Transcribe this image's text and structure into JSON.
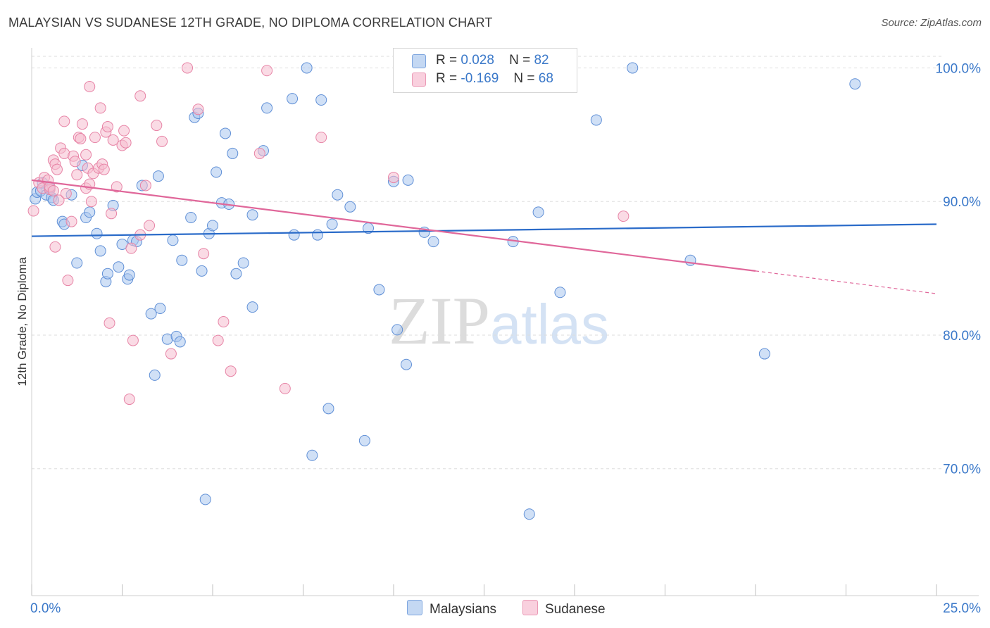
{
  "title": "MALAYSIAN VS SUDANESE 12TH GRADE, NO DIPLOMA CORRELATION CHART",
  "source": "Source: ZipAtlas.com",
  "watermark": {
    "zip": "ZIP",
    "atlas": "atlas"
  },
  "legend": {
    "rows": [
      {
        "r_label": "R =",
        "r_value": "0.028",
        "n_label": "N =",
        "n_value": "82"
      },
      {
        "r_label": "R =",
        "r_value": "-0.169",
        "n_label": "N =",
        "n_value": "68"
      }
    ]
  },
  "colors": {
    "blue_fill": "#a9c6ee",
    "blue_stroke": "#5f8fd6",
    "blue_line": "#2a6bc9",
    "pink_fill": "#f6bdd0",
    "pink_stroke": "#e784a6",
    "pink_line": "#e0679a",
    "tick_label": "#3a78c9",
    "grid": "#dddddd"
  },
  "chart_data": {
    "type": "scatter",
    "title": "MALAYSIAN VS SUDANESE 12TH GRADE, NO DIPLOMA CORRELATION CHART",
    "xlabel": "",
    "ylabel": "12th Grade, No Diploma",
    "xlim": [
      0,
      25
    ],
    "ylim": [
      60.5,
      101.5
    ],
    "x_tick_labels": [
      "0.0%",
      "25.0%"
    ],
    "y_ticks": [
      70,
      80,
      90,
      100
    ],
    "y_tick_labels": [
      "70.0%",
      "80.0%",
      "90.0%",
      "100.0%"
    ],
    "grid": true,
    "legend_position": "bottom",
    "series": [
      {
        "name": "Malaysians",
        "color": "#a9c6ee",
        "points": [
          [
            0.1,
            90.2
          ],
          [
            0.15,
            90.7
          ],
          [
            0.25,
            90.8
          ],
          [
            0.3,
            91.4
          ],
          [
            0.4,
            90.5
          ],
          [
            0.5,
            91.0
          ],
          [
            0.55,
            90.3
          ],
          [
            0.6,
            90.1
          ],
          [
            0.85,
            88.5
          ],
          [
            0.9,
            88.3
          ],
          [
            1.1,
            90.5
          ],
          [
            1.4,
            92.7
          ],
          [
            1.5,
            88.8
          ],
          [
            1.6,
            89.2
          ],
          [
            1.8,
            87.6
          ],
          [
            1.9,
            86.3
          ],
          [
            1.25,
            85.4
          ],
          [
            2.05,
            84.0
          ],
          [
            2.1,
            84.6
          ],
          [
            2.25,
            89.7
          ],
          [
            2.4,
            85.1
          ],
          [
            2.5,
            86.8
          ],
          [
            2.65,
            84.2
          ],
          [
            2.7,
            84.5
          ],
          [
            2.8,
            87.1
          ],
          [
            2.9,
            87.0
          ],
          [
            3.05,
            91.2
          ],
          [
            3.3,
            81.6
          ],
          [
            3.4,
            77.0
          ],
          [
            3.5,
            91.9
          ],
          [
            3.55,
            82.0
          ],
          [
            3.75,
            79.7
          ],
          [
            3.9,
            87.1
          ],
          [
            4.0,
            79.9
          ],
          [
            4.1,
            79.5
          ],
          [
            4.15,
            85.6
          ],
          [
            4.4,
            88.8
          ],
          [
            4.5,
            96.3
          ],
          [
            4.6,
            96.6
          ],
          [
            4.7,
            84.8
          ],
          [
            4.8,
            67.7
          ],
          [
            4.9,
            87.6
          ],
          [
            5.0,
            88.2
          ],
          [
            5.1,
            92.2
          ],
          [
            5.25,
            89.9
          ],
          [
            5.35,
            95.1
          ],
          [
            5.45,
            89.8
          ],
          [
            5.55,
            93.6
          ],
          [
            5.65,
            84.6
          ],
          [
            5.85,
            85.4
          ],
          [
            6.1,
            89.0
          ],
          [
            6.1,
            82.1
          ],
          [
            6.4,
            93.8
          ],
          [
            6.5,
            97.0
          ],
          [
            7.2,
            97.7
          ],
          [
            7.25,
            87.5
          ],
          [
            7.6,
            100.0
          ],
          [
            7.75,
            71.0
          ],
          [
            7.9,
            87.5
          ],
          [
            8.0,
            97.6
          ],
          [
            8.2,
            74.5
          ],
          [
            8.3,
            88.3
          ],
          [
            8.45,
            90.5
          ],
          [
            8.8,
            89.6
          ],
          [
            9.2,
            72.1
          ],
          [
            9.3,
            88.0
          ],
          [
            9.6,
            83.4
          ],
          [
            10.0,
            91.5
          ],
          [
            10.1,
            80.4
          ],
          [
            10.35,
            77.8
          ],
          [
            10.4,
            91.6
          ],
          [
            10.85,
            87.7
          ],
          [
            11.1,
            87.0
          ],
          [
            12.15,
            100.0
          ],
          [
            13.3,
            87.0
          ],
          [
            13.75,
            66.6
          ],
          [
            14.0,
            89.2
          ],
          [
            14.6,
            83.2
          ],
          [
            15.6,
            96.1
          ],
          [
            16.6,
            100.0
          ],
          [
            18.2,
            85.6
          ],
          [
            20.25,
            78.6
          ],
          [
            22.75,
            98.8
          ]
        ],
        "trend": {
          "x": [
            0,
            25
          ],
          "y": [
            87.4,
            88.3
          ]
        }
      },
      {
        "name": "Sudanese",
        "color": "#f6bdd0",
        "points": [
          [
            0.05,
            89.3
          ],
          [
            0.2,
            91.4
          ],
          [
            0.3,
            91.0
          ],
          [
            0.35,
            91.8
          ],
          [
            0.45,
            91.6
          ],
          [
            0.6,
            93.1
          ],
          [
            0.65,
            92.8
          ],
          [
            0.7,
            92.4
          ],
          [
            0.5,
            90.9
          ],
          [
            0.5,
            91.1
          ],
          [
            0.6,
            90.8
          ],
          [
            0.65,
            86.6
          ],
          [
            0.75,
            90.1
          ],
          [
            0.8,
            94.0
          ],
          [
            0.9,
            93.6
          ],
          [
            0.9,
            96.0
          ],
          [
            0.95,
            90.6
          ],
          [
            1.0,
            84.1
          ],
          [
            1.1,
            88.5
          ],
          [
            1.15,
            93.4
          ],
          [
            1.2,
            93.0
          ],
          [
            1.25,
            92.0
          ],
          [
            1.3,
            94.8
          ],
          [
            1.35,
            94.7
          ],
          [
            1.4,
            95.8
          ],
          [
            1.5,
            91.0
          ],
          [
            1.5,
            93.5
          ],
          [
            1.6,
            98.6
          ],
          [
            1.55,
            92.5
          ],
          [
            1.6,
            91.3
          ],
          [
            1.65,
            90.0
          ],
          [
            1.7,
            92.1
          ],
          [
            1.75,
            94.8
          ],
          [
            1.85,
            92.5
          ],
          [
            1.9,
            97.0
          ],
          [
            1.95,
            92.8
          ],
          [
            2.0,
            92.4
          ],
          [
            2.05,
            95.2
          ],
          [
            2.1,
            95.6
          ],
          [
            2.15,
            80.9
          ],
          [
            2.2,
            89.1
          ],
          [
            2.25,
            94.6
          ],
          [
            2.35,
            91.1
          ],
          [
            2.5,
            94.2
          ],
          [
            2.55,
            95.3
          ],
          [
            2.6,
            94.4
          ],
          [
            2.7,
            75.2
          ],
          [
            2.75,
            86.5
          ],
          [
            2.8,
            79.6
          ],
          [
            3.0,
            97.9
          ],
          [
            3.0,
            87.5
          ],
          [
            3.15,
            91.2
          ],
          [
            3.25,
            88.2
          ],
          [
            3.45,
            95.7
          ],
          [
            3.6,
            94.5
          ],
          [
            3.85,
            78.6
          ],
          [
            4.3,
            100.0
          ],
          [
            4.6,
            96.9
          ],
          [
            4.75,
            86.1
          ],
          [
            5.15,
            79.6
          ],
          [
            5.3,
            81.0
          ],
          [
            5.5,
            77.3
          ],
          [
            6.3,
            93.6
          ],
          [
            6.5,
            99.8
          ],
          [
            7.0,
            76.0
          ],
          [
            8.0,
            94.8
          ],
          [
            10.0,
            91.8
          ],
          [
            16.35,
            88.9
          ]
        ],
        "trend": {
          "x": [
            0,
            20
          ],
          "y": [
            91.6,
            84.8
          ]
        },
        "trend_dashed": {
          "x": [
            20,
            25
          ],
          "y": [
            84.8,
            83.1
          ]
        }
      }
    ]
  }
}
